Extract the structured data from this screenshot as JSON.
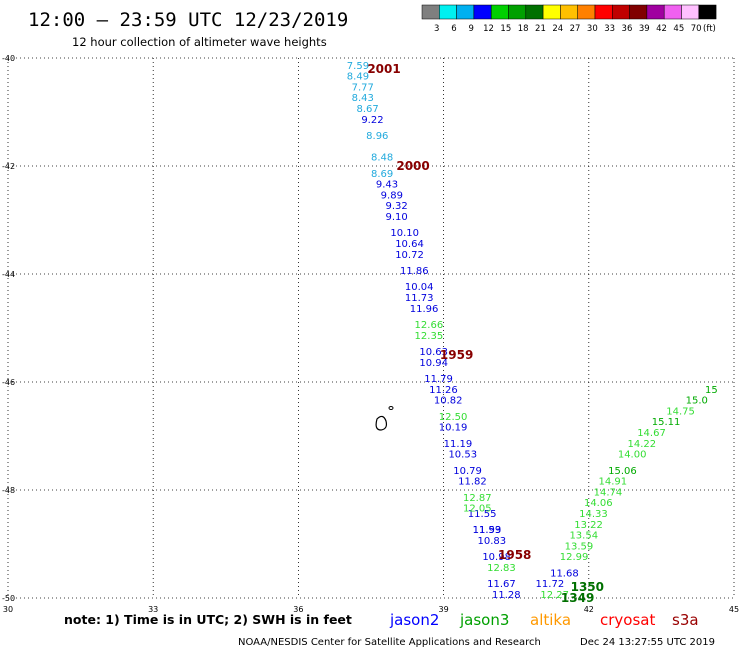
{
  "header": {
    "title": "12:00 – 23:59 UTC 12/23/2019",
    "subtitle": "12 hour collection of altimeter wave heights"
  },
  "colorbar": {
    "colors": [
      "#7f7f7f",
      "#00f0f0",
      "#00b0f0",
      "#0000ff",
      "#00d000",
      "#00a000",
      "#007000",
      "#ffff00",
      "#ffc000",
      "#ff8000",
      "#ff0000",
      "#c00000",
      "#800000",
      "#a000a0",
      "#f060f0",
      "#ffc0ff",
      "#000000"
    ],
    "labels": [
      "3",
      "6",
      "9",
      "12",
      "15",
      "18",
      "21",
      "24",
      "27",
      "30",
      "33",
      "36",
      "39",
      "42",
      "45",
      "70",
      "(ft)"
    ]
  },
  "footer": {
    "note": "note:  1) Time is in UTC;  2) SWH is in feet",
    "credit": "NOAA/NESDIS Center for Satellite Applications and Research",
    "timestamp": "Dec 24 13:27:55 UTC 2019",
    "satellites": [
      {
        "name": "jason2",
        "color": "#0000ff"
      },
      {
        "name": "jason3",
        "color": "#00a000"
      },
      {
        "name": "altika",
        "color": "#ff9900"
      },
      {
        "name": "cryosat",
        "color": "#ff0000"
      },
      {
        "name": "s3a",
        "color": "#990000"
      }
    ]
  },
  "chart_data": {
    "type": "scatter",
    "title": "12:00 – 23:59 UTC 12/23/2019",
    "subtitle": "12 hour collection of altimeter wave heights",
    "xlim": [
      30,
      45
    ],
    "ylim": [
      -50,
      -40
    ],
    "x_ticks": [
      "30",
      "33",
      "36",
      "39",
      "42",
      "45"
    ],
    "y_ticks": [
      "-40",
      "-42",
      "-44",
      "-46",
      "-48",
      "-50"
    ],
    "grid": true,
    "unit": "ft",
    "series": [
      {
        "name": "jason2",
        "points": [
          {
            "x": 37.0,
            "y": -40.2,
            "v": "7.59"
          },
          {
            "x": 37.0,
            "y": -40.4,
            "v": "8.49"
          },
          {
            "x": 37.1,
            "y": -40.6,
            "v": "7.77"
          },
          {
            "x": 37.1,
            "y": -40.8,
            "v": "8.43"
          },
          {
            "x": 37.2,
            "y": -41.0,
            "v": "8.67"
          },
          {
            "x": 37.3,
            "y": -41.2,
            "v": "9.22"
          },
          {
            "x": 37.4,
            "y": -41.5,
            "v": "8.96"
          },
          {
            "x": 37.5,
            "y": -41.9,
            "v": "8.48"
          },
          {
            "x": 37.5,
            "y": -42.2,
            "v": "8.69"
          },
          {
            "x": 37.6,
            "y": -42.4,
            "v": "9.43"
          },
          {
            "x": 37.7,
            "y": -42.6,
            "v": "9.89"
          },
          {
            "x": 37.8,
            "y": -42.8,
            "v": "9.32"
          },
          {
            "x": 37.8,
            "y": -43.0,
            "v": "9.10"
          },
          {
            "x": 37.9,
            "y": -43.3,
            "v": "10.10"
          },
          {
            "x": 38.0,
            "y": -43.5,
            "v": "10.64"
          },
          {
            "x": 38.0,
            "y": -43.7,
            "v": "10.72"
          },
          {
            "x": 38.1,
            "y": -44.0,
            "v": "11.86"
          },
          {
            "x": 38.2,
            "y": -44.3,
            "v": "10.04"
          },
          {
            "x": 38.2,
            "y": -44.5,
            "v": "11.73"
          },
          {
            "x": 38.3,
            "y": -44.7,
            "v": "11.96"
          },
          {
            "x": 38.5,
            "y": -45.5,
            "v": "10.63"
          },
          {
            "x": 38.5,
            "y": -45.7,
            "v": "10.94"
          },
          {
            "x": 38.6,
            "y": -46.0,
            "v": "11.79"
          },
          {
            "x": 38.7,
            "y": -46.2,
            "v": "11.26"
          },
          {
            "x": 38.8,
            "y": -46.4,
            "v": "10.82"
          },
          {
            "x": 38.9,
            "y": -46.9,
            "v": "10.19"
          },
          {
            "x": 39.0,
            "y": -47.2,
            "v": "11.19"
          },
          {
            "x": 39.1,
            "y": -47.4,
            "v": "10.53"
          },
          {
            "x": 39.2,
            "y": -47.7,
            "v": "10.79"
          },
          {
            "x": 39.3,
            "y": -47.9,
            "v": "11.82"
          },
          {
            "x": 39.5,
            "y": -48.5,
            "v": "11.55"
          },
          {
            "x": 39.6,
            "y": -48.8,
            "v": "11.99"
          },
          {
            "x": 39.7,
            "y": -49.0,
            "v": "10.83"
          },
          {
            "x": 39.8,
            "y": -49.3,
            "v": "10.98"
          },
          {
            "x": 39.9,
            "y": -49.8,
            "v": "11.67"
          },
          {
            "x": 40.0,
            "y": -50.0,
            "v": "11.28"
          },
          {
            "x": 40.9,
            "y": -49.8,
            "v": "11.72"
          },
          {
            "x": 41.2,
            "y": -49.6,
            "v": "11.68"
          }
        ]
      },
      {
        "name": "jason3",
        "points": [
          {
            "x": 38.4,
            "y": -45.0,
            "v": "12.66"
          },
          {
            "x": 38.4,
            "y": -45.2,
            "v": "12.35"
          },
          {
            "x": 38.9,
            "y": -46.7,
            "v": "12.50"
          },
          {
            "x": 39.4,
            "y": -48.2,
            "v": "12.87"
          },
          {
            "x": 39.4,
            "y": -48.4,
            "v": "12.05"
          },
          {
            "x": 39.6,
            "y": -48.8,
            "v": "11.53"
          },
          {
            "x": 39.9,
            "y": -49.5,
            "v": "12.83"
          },
          {
            "x": 41.0,
            "y": -50.0,
            "v": "12.27"
          },
          {
            "x": 41.4,
            "y": -49.3,
            "v": "12.99"
          },
          {
            "x": 41.5,
            "y": -49.1,
            "v": "13.59"
          },
          {
            "x": 41.6,
            "y": -48.9,
            "v": "13.54"
          },
          {
            "x": 41.7,
            "y": -48.7,
            "v": "13.22"
          },
          {
            "x": 41.8,
            "y": -48.5,
            "v": "14.33"
          },
          {
            "x": 41.9,
            "y": -48.3,
            "v": "14.06"
          },
          {
            "x": 42.1,
            "y": -48.1,
            "v": "14.74"
          },
          {
            "x": 42.2,
            "y": -47.9,
            "v": "14.91"
          },
          {
            "x": 42.4,
            "y": -47.7,
            "v": "15.06"
          },
          {
            "x": 42.6,
            "y": -47.4,
            "v": "14.00"
          },
          {
            "x": 42.8,
            "y": -47.2,
            "v": "14.22"
          },
          {
            "x": 43.0,
            "y": -47.0,
            "v": "14.67"
          },
          {
            "x": 43.3,
            "y": -46.8,
            "v": "15.11"
          },
          {
            "x": 43.6,
            "y": -46.6,
            "v": "14.75"
          },
          {
            "x": 44.0,
            "y": -46.4,
            "v": "15.0"
          },
          {
            "x": 44.4,
            "y": -46.2,
            "v": "15"
          }
        ]
      }
    ],
    "time_labels": [
      {
        "x": 37.3,
        "y": -40.2,
        "text": "2001",
        "color": "#880000"
      },
      {
        "x": 37.9,
        "y": -42.0,
        "text": "2000",
        "color": "#880000"
      },
      {
        "x": 38.8,
        "y": -45.5,
        "text": "1959",
        "color": "#880000"
      },
      {
        "x": 40.0,
        "y": -49.2,
        "text": "1958",
        "color": "#880000"
      },
      {
        "x": 41.5,
        "y": -49.8,
        "text": "1350",
        "color": "#007000"
      },
      {
        "x": 41.3,
        "y": -50.0,
        "text": "1349",
        "color": "#007000"
      }
    ]
  }
}
